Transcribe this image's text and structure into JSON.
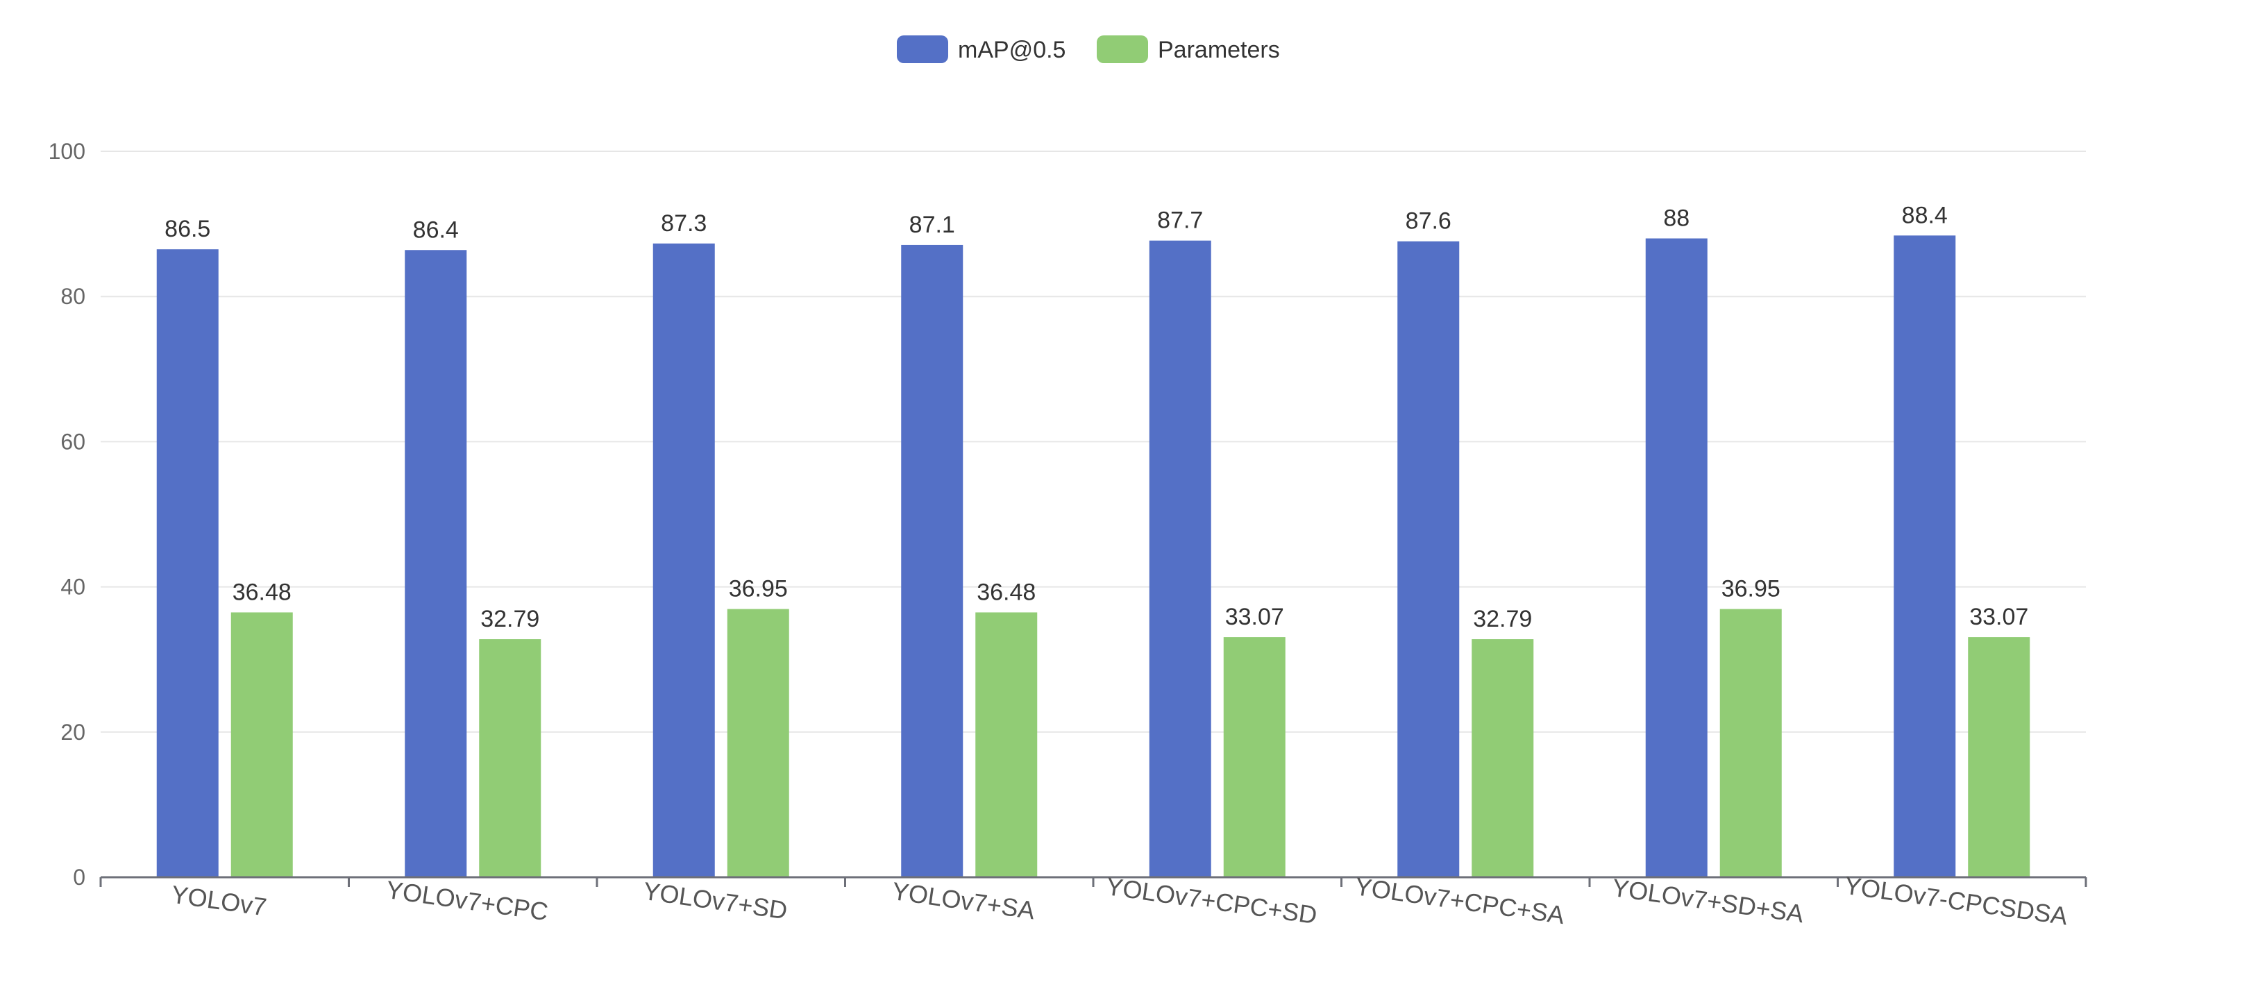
{
  "chart_data": {
    "type": "bar",
    "title": "",
    "xlabel": "",
    "ylabel": "",
    "categories": [
      "YOLOv7",
      "YOLOv7+CPC",
      "YOLOv7+SD",
      "YOLOv7+SA",
      "YOLOv7+CPC+SD",
      "YOLOv7+CPC+SA",
      "YOLOv7+SD+SA",
      "YOLOv7-CPCSDSA"
    ],
    "series": [
      {
        "name": "mAP@0.5",
        "color": "#5470c6",
        "values": [
          86.5,
          86.4,
          87.3,
          87.1,
          87.7,
          87.6,
          88,
          88.4
        ]
      },
      {
        "name": "Parameters",
        "color": "#91cc75",
        "values": [
          36.48,
          32.79,
          36.95,
          36.48,
          33.07,
          32.79,
          36.95,
          33.07
        ]
      }
    ],
    "ylim": [
      0,
      100
    ],
    "yticks": [
      0,
      20,
      40,
      60,
      80,
      100
    ],
    "grid": true,
    "legend": "top-center",
    "data_labels": true
  }
}
